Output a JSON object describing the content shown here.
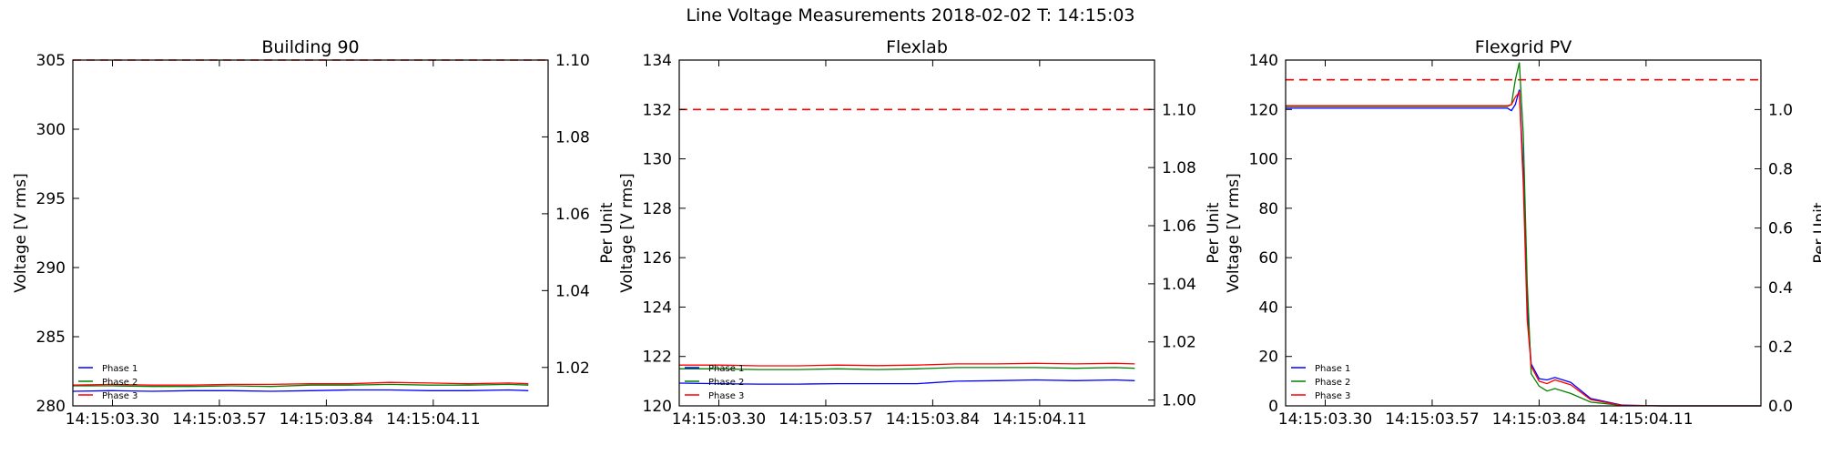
{
  "suptitle": "Line Voltage Measurements 2018-02-02 T: 14:15:03",
  "colors": {
    "phase1": "#0000ff",
    "phase2": "#008000",
    "phase3": "#ff0000",
    "limit": "#ff0000"
  },
  "chart_data": [
    {
      "type": "line",
      "title": "Building 90",
      "ylabel": "Voltage [V rms]",
      "ylabel_right": "Per Unit",
      "x": [
        "14:15:03.20",
        "14:15:03.30",
        "14:15:03.40",
        "14:15:03.50",
        "14:15:03.60",
        "14:15:03.70",
        "14:15:03.80",
        "14:15:03.90",
        "14:15:04.00",
        "14:15:04.10",
        "14:15:04.20",
        "14:15:04.30",
        "14:15:04.35"
      ],
      "xticks": [
        "14:15:03.30",
        "14:15:03.57",
        "14:15:03.84",
        "14:15:04.11"
      ],
      "ylim": [
        280,
        305
      ],
      "yticks": [
        280,
        285,
        290,
        295,
        300,
        305
      ],
      "ylim_right": [
        1.01,
        1.1
      ],
      "yticks_right": [
        1.02,
        1.04,
        1.06,
        1.08,
        1.1
      ],
      "limit_line": 305,
      "legend_position": "lower left",
      "series": [
        {
          "name": "Phase 1",
          "values": [
            281.05,
            281.1,
            281.05,
            281.1,
            281.1,
            281.05,
            281.1,
            281.15,
            281.15,
            281.1,
            281.1,
            281.15,
            281.1
          ]
        },
        {
          "name": "Phase 2",
          "values": [
            281.45,
            281.45,
            281.4,
            281.4,
            281.45,
            281.4,
            281.5,
            281.5,
            281.55,
            281.5,
            281.5,
            281.55,
            281.5
          ]
        },
        {
          "name": "Phase 3",
          "values": [
            281.5,
            281.55,
            281.5,
            281.5,
            281.55,
            281.55,
            281.6,
            281.6,
            281.7,
            281.65,
            281.6,
            281.65,
            281.6
          ]
        }
      ]
    },
    {
      "type": "line",
      "title": "Flexlab",
      "ylabel": "Voltage [V rms]",
      "ylabel_right": "Per Unit",
      "x": [
        "14:15:03.20",
        "14:15:03.30",
        "14:15:03.40",
        "14:15:03.50",
        "14:15:03.60",
        "14:15:03.70",
        "14:15:03.80",
        "14:15:03.90",
        "14:15:04.00",
        "14:15:04.10",
        "14:15:04.20",
        "14:15:04.30",
        "14:15:04.35"
      ],
      "xticks": [
        "14:15:03.30",
        "14:15:03.57",
        "14:15:03.84",
        "14:15:04.11"
      ],
      "ylim": [
        120,
        134
      ],
      "yticks": [
        120,
        122,
        124,
        126,
        128,
        130,
        132,
        134
      ],
      "ylim_right": [
        0.998,
        1.117
      ],
      "yticks_right": [
        1.0,
        1.02,
        1.04,
        1.06,
        1.08,
        1.1
      ],
      "limit_line": 132,
      "legend_position": "lower left",
      "series": [
        {
          "name": "Phase 1",
          "values": [
            120.92,
            120.9,
            120.88,
            120.88,
            120.9,
            120.9,
            120.9,
            121.0,
            121.02,
            121.05,
            121.02,
            121.05,
            121.02
          ]
        },
        {
          "name": "Phase 2",
          "values": [
            121.5,
            121.5,
            121.47,
            121.47,
            121.5,
            121.47,
            121.5,
            121.55,
            121.55,
            121.55,
            121.52,
            121.55,
            121.52
          ]
        },
        {
          "name": "Phase 3",
          "values": [
            121.65,
            121.65,
            121.62,
            121.62,
            121.65,
            121.63,
            121.65,
            121.7,
            121.7,
            121.72,
            121.7,
            121.72,
            121.7
          ]
        }
      ]
    },
    {
      "type": "line",
      "title": "Flexgrid PV",
      "ylabel": "Voltage [V rms]",
      "ylabel_right": "Per Unit",
      "x": [
        "14:15:03.20",
        "14:15:03.30",
        "14:15:03.40",
        "14:15:03.50",
        "14:15:03.60",
        "14:15:03.70",
        "14:15:03.76",
        "14:15:03.77",
        "14:15:03.78",
        "14:15:03.79",
        "14:15:03.80",
        "14:15:03.81",
        "14:15:03.82",
        "14:15:03.84",
        "14:15:03.86",
        "14:15:03.88",
        "14:15:03.92",
        "14:15:03.97",
        "14:15:04.05",
        "14:15:04.15",
        "14:15:04.25",
        "14:15:04.35",
        "14:15:04.40"
      ],
      "xticks": [
        "14:15:03.30",
        "14:15:03.57",
        "14:15:03.84",
        "14:15:04.11"
      ],
      "ylim": [
        0,
        140
      ],
      "yticks": [
        0,
        20,
        40,
        60,
        80,
        100,
        120,
        140
      ],
      "ylim_right": [
        0,
        1.167
      ],
      "yticks_right": [
        0.0,
        0.2,
        0.4,
        0.6,
        0.8,
        1.0
      ],
      "limit_line": 132,
      "legend_position": "lower left",
      "series": [
        {
          "name": "Phase 1",
          "values": [
            120.5,
            120.5,
            120.5,
            120.5,
            120.5,
            120.5,
            120.5,
            119.5,
            122,
            128,
            95,
            40,
            17,
            11,
            10.5,
            11.5,
            9.5,
            3,
            0.3,
            0,
            0,
            0,
            0
          ]
        },
        {
          "name": "Phase 2",
          "values": [
            121.2,
            121.2,
            121.2,
            121.2,
            121.2,
            121.2,
            121.2,
            122,
            132,
            139,
            110,
            50,
            13,
            8,
            6,
            7,
            5,
            1.5,
            0.2,
            0,
            0,
            0,
            0
          ]
        },
        {
          "name": "Phase 3",
          "values": [
            121.5,
            121.5,
            121.5,
            121.5,
            121.5,
            121.5,
            121.5,
            122,
            125,
            127,
            90,
            35,
            16,
            10,
            9,
            10.5,
            8.5,
            2.5,
            0.2,
            0,
            0,
            0,
            0
          ]
        }
      ]
    }
  ]
}
